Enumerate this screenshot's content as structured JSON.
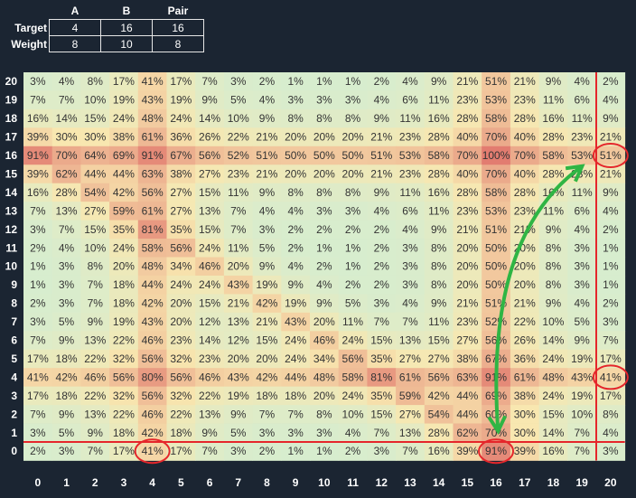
{
  "legend_table": {
    "columns": [
      "A",
      "B",
      "Pair"
    ],
    "rows": [
      {
        "label": "Target",
        "values": [
          "4",
          "16",
          "16"
        ]
      },
      {
        "label": "Weight",
        "values": [
          "8",
          "10",
          "8"
        ]
      }
    ]
  },
  "chart_data": {
    "type": "heatmap",
    "title": "",
    "xlabel": "",
    "ylabel": "",
    "x_categories": [
      "0",
      "1",
      "2",
      "3",
      "4",
      "5",
      "6",
      "7",
      "8",
      "9",
      "10",
      "11",
      "12",
      "13",
      "14",
      "15",
      "16",
      "17",
      "18",
      "19",
      "20"
    ],
    "y_categories": [
      "20",
      "19",
      "18",
      "17",
      "16",
      "15",
      "14",
      "13",
      "12",
      "11",
      "10",
      "9",
      "8",
      "7",
      "6",
      "5",
      "4",
      "3",
      "2",
      "1",
      "0"
    ],
    "value_format": "percent",
    "colors": {
      "low": "#d6edcf",
      "mid": "#f8e7b0",
      "high": "#e27c70",
      "background": "#1b2532",
      "highlight": "#e5262b",
      "arrow": "#2fb544"
    },
    "values": [
      [
        3,
        4,
        8,
        17,
        41,
        17,
        7,
        3,
        2,
        1,
        1,
        1,
        2,
        4,
        9,
        21,
        51,
        21,
        9,
        4,
        2
      ],
      [
        7,
        7,
        10,
        19,
        43,
        19,
        9,
        5,
        4,
        3,
        3,
        3,
        4,
        6,
        11,
        23,
        53,
        23,
        11,
        6,
        4
      ],
      [
        16,
        14,
        15,
        24,
        48,
        24,
        14,
        10,
        9,
        8,
        8,
        8,
        9,
        11,
        16,
        28,
        58,
        28,
        16,
        11,
        9
      ],
      [
        39,
        30,
        30,
        38,
        61,
        36,
        26,
        22,
        21,
        20,
        20,
        20,
        21,
        23,
        28,
        40,
        70,
        40,
        28,
        23,
        21
      ],
      [
        91,
        70,
        64,
        69,
        91,
        67,
        56,
        52,
        51,
        50,
        50,
        50,
        51,
        53,
        58,
        70,
        100,
        70,
        58,
        53,
        51
      ],
      [
        39,
        62,
        44,
        44,
        63,
        38,
        27,
        23,
        21,
        20,
        20,
        20,
        21,
        23,
        28,
        40,
        70,
        40,
        28,
        23,
        21
      ],
      [
        16,
        28,
        54,
        42,
        56,
        27,
        15,
        11,
        9,
        8,
        8,
        8,
        9,
        11,
        16,
        28,
        58,
        28,
        16,
        11,
        9
      ],
      [
        7,
        13,
        27,
        59,
        61,
        27,
        13,
        7,
        4,
        4,
        3,
        3,
        4,
        6,
        11,
        23,
        53,
        23,
        11,
        6,
        4
      ],
      [
        3,
        7,
        15,
        35,
        81,
        35,
        15,
        7,
        3,
        2,
        2,
        2,
        2,
        4,
        9,
        21,
        51,
        21,
        9,
        4,
        2
      ],
      [
        2,
        4,
        10,
        24,
        58,
        56,
        24,
        11,
        5,
        2,
        1,
        1,
        2,
        3,
        8,
        20,
        50,
        20,
        8,
        3,
        1
      ],
      [
        1,
        3,
        8,
        20,
        48,
        34,
        46,
        20,
        9,
        4,
        2,
        1,
        2,
        3,
        8,
        20,
        50,
        20,
        8,
        3,
        1
      ],
      [
        1,
        3,
        7,
        18,
        44,
        24,
        24,
        43,
        19,
        9,
        4,
        2,
        2,
        3,
        8,
        20,
        50,
        20,
        8,
        3,
        1
      ],
      [
        2,
        3,
        7,
        18,
        42,
        20,
        15,
        21,
        42,
        19,
        9,
        5,
        3,
        4,
        9,
        21,
        51,
        21,
        9,
        4,
        2
      ],
      [
        3,
        5,
        9,
        19,
        43,
        20,
        12,
        13,
        21,
        43,
        20,
        11,
        7,
        7,
        11,
        23,
        52,
        22,
        10,
        5,
        3
      ],
      [
        7,
        9,
        13,
        22,
        46,
        23,
        14,
        12,
        15,
        24,
        46,
        24,
        15,
        13,
        15,
        27,
        56,
        26,
        14,
        9,
        7
      ],
      [
        17,
        18,
        22,
        32,
        56,
        32,
        23,
        20,
        20,
        24,
        34,
        56,
        35,
        27,
        27,
        38,
        67,
        36,
        24,
        19,
        17
      ],
      [
        41,
        42,
        46,
        56,
        80,
        56,
        46,
        43,
        42,
        44,
        48,
        58,
        81,
        61,
        56,
        63,
        91,
        61,
        48,
        43,
        41
      ],
      [
        17,
        18,
        22,
        32,
        56,
        32,
        22,
        19,
        18,
        18,
        20,
        24,
        35,
        59,
        42,
        44,
        69,
        38,
        24,
        19,
        17
      ],
      [
        7,
        9,
        13,
        22,
        46,
        22,
        13,
        9,
        7,
        7,
        8,
        10,
        15,
        27,
        54,
        44,
        60,
        30,
        15,
        10,
        8
      ],
      [
        3,
        5,
        9,
        18,
        42,
        18,
        9,
        5,
        3,
        3,
        3,
        4,
        7,
        13,
        28,
        62,
        70,
        30,
        14,
        7,
        4
      ],
      [
        2,
        3,
        7,
        17,
        41,
        17,
        7,
        3,
        2,
        1,
        1,
        2,
        3,
        7,
        16,
        39,
        91,
        39,
        16,
        7,
        3
      ]
    ]
  }
}
